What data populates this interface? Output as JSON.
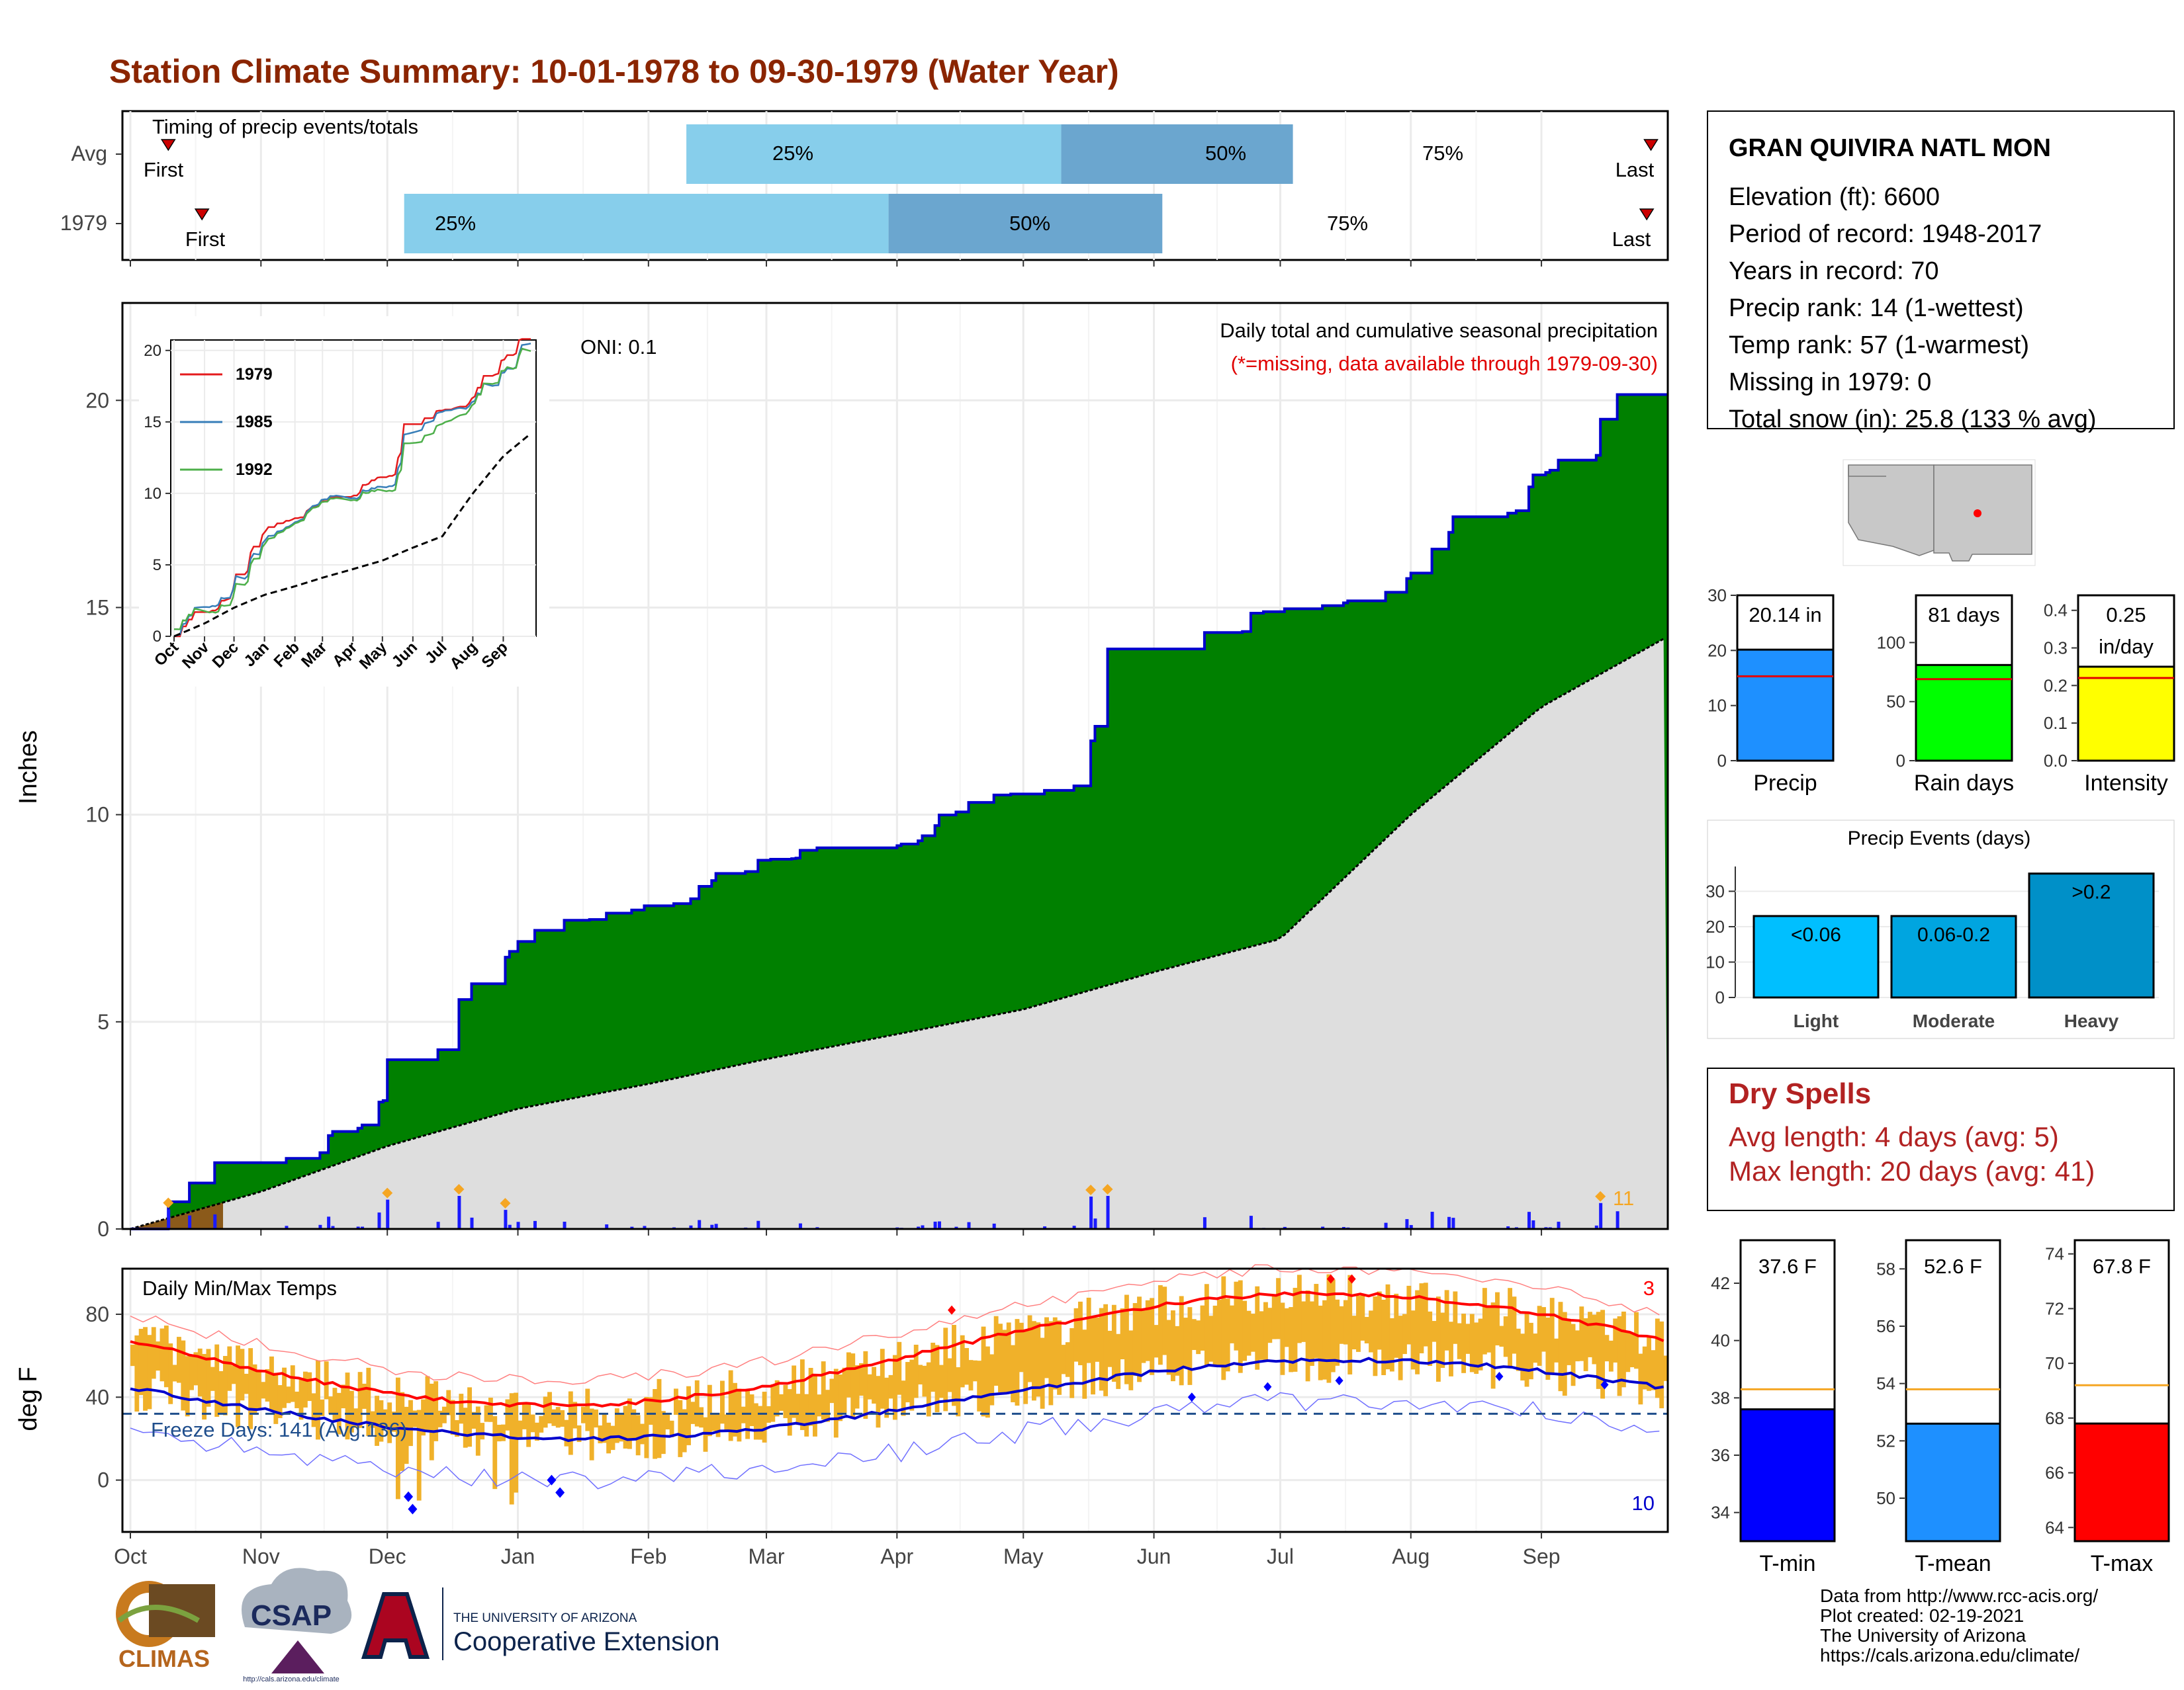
{
  "title": "Station Climate Summary: 10-01-1978 to 09-30-1979 (Water Year)",
  "colors": {
    "title": "#8B2500",
    "precip_fill": "#008000",
    "precip_line": "#0000CD",
    "avg_fill": "#DEDEDE",
    "snow_fill": "#8B5A1A",
    "light_bar": "#87CEEB",
    "dark_bar": "#6BA6CF",
    "temp_bar": "#F0B12A",
    "tmax": "#FF0000",
    "tmin": "#0000CD",
    "dry": "#B22222"
  },
  "timing": {
    "panel_label": "Timing of precip events/totals",
    "rows": [
      {
        "label": "Avg",
        "first_label": "First",
        "last_label": "Last",
        "p25": "25%",
        "p50": "50%",
        "p75": "75%",
        "first_day": 9,
        "last_day": 361,
        "d25": 132,
        "d50": 221,
        "d75": 276
      },
      {
        "label": "1979",
        "first_label": "First",
        "last_label": "Last",
        "p25": "25%",
        "p50": "50%",
        "p75": "75%",
        "first_day": 17,
        "last_day": 360,
        "d25": 65,
        "d50": 180,
        "d75": 245
      }
    ]
  },
  "precip": {
    "ylabel": "Inches",
    "oni": "ONI: 0.1",
    "subtitle": "Daily total and cumulative seasonal precipitation",
    "missing_note": "(*=missing, data available through 1979-09-30)",
    "event_count": "11",
    "yticks": [
      "0",
      "5",
      "10",
      "15",
      "20"
    ]
  },
  "inset": {
    "legend": [
      "1979",
      "1985",
      "1992"
    ],
    "legend_colors": [
      "#E41A1C",
      "#377EB8",
      "#4DAF4A"
    ],
    "yticks": [
      "0",
      "5",
      "10",
      "15",
      "20"
    ],
    "months": [
      "Oct",
      "Nov",
      "Dec",
      "Jan",
      "Feb",
      "Mar",
      "Apr",
      "May",
      "Jun",
      "Jul",
      "Aug",
      "Sep"
    ]
  },
  "temps": {
    "ylabel": "deg F",
    "panel_label": "Daily Min/Max Temps",
    "freeze_label": "Freeze Days: 141 (Avg:136)",
    "record_high_count": "3",
    "record_low_count": "10",
    "yticks": [
      "0",
      "40",
      "80"
    ]
  },
  "months": [
    "Oct",
    "Nov",
    "Dec",
    "Jan",
    "Feb",
    "Mar",
    "Apr",
    "May",
    "Jun",
    "Jul",
    "Aug",
    "Sep"
  ],
  "station": {
    "name": "GRAN QUIVIRA NATL MON",
    "lines": [
      "Elevation (ft): 6600",
      "Period of record: 1948-2017",
      "Years in record: 70",
      "Precip rank: 14 (1-wettest)",
      "Temp rank: 57 (1-warmest)",
      "Missing in 1979: 0",
      "Total snow (in): 25.8 (133 % avg)"
    ]
  },
  "summary_bars": [
    {
      "name": "Precip",
      "value_label": "20.14 in",
      "value": 20.14,
      "avg": 15.3,
      "ymax": 30,
      "ticks": [
        "0",
        "10",
        "20",
        "30"
      ],
      "color": "#1E90FF"
    },
    {
      "name": "Rain days",
      "value_label": "81 days",
      "value": 81,
      "avg": 69,
      "ymax": 140,
      "ticks": [
        "0",
        "50",
        "100"
      ],
      "color": "#00FF00"
    },
    {
      "name": "Intensity",
      "value_label": "0.25",
      "value_label2": "in/day",
      "value": 0.25,
      "avg": 0.22,
      "ymax": 0.44,
      "ticks": [
        "0.0",
        "0.1",
        "0.2",
        "0.3",
        "0.4"
      ],
      "color": "#FFFF00"
    }
  ],
  "events": {
    "title": "Precip Events (days)",
    "bars": [
      {
        "name": "Light",
        "label": "<0.06",
        "value": 23,
        "color": "#00BFFF"
      },
      {
        "name": "Moderate",
        "label": "0.06-0.2",
        "value": 23,
        "color": "#00A5E0"
      },
      {
        "name": "Heavy",
        "label": ">0.2",
        "value": 35,
        "color": "#0090C8"
      }
    ],
    "ticks": [
      "0",
      "10",
      "20",
      "30"
    ]
  },
  "dry_spells": {
    "title": "Dry Spells",
    "avg": "Avg length: 4 days (avg: 5)",
    "max": "Max length: 20 days (avg: 41)"
  },
  "temp_bars": [
    {
      "name": "T-min",
      "value_label": "37.6 F",
      "value": 37.6,
      "avg": 38.3,
      "min": 33,
      "max": 43.5,
      "ticks": [
        "34",
        "36",
        "38",
        "40",
        "42"
      ],
      "tickv": [
        34,
        36,
        38,
        40,
        42
      ],
      "color": "#0000FF"
    },
    {
      "name": "T-mean",
      "value_label": "52.6 F",
      "value": 52.6,
      "avg": 53.8,
      "min": 48.5,
      "max": 59,
      "ticks": [
        "50",
        "52",
        "54",
        "56",
        "58"
      ],
      "tickv": [
        50,
        52,
        54,
        56,
        58
      ],
      "color": "#1E90FF"
    },
    {
      "name": "T-max",
      "value_label": "67.8 F",
      "value": 67.8,
      "avg": 69.2,
      "min": 63.5,
      "max": 74.5,
      "ticks": [
        "64",
        "66",
        "68",
        "70",
        "72",
        "74"
      ],
      "tickv": [
        64,
        66,
        68,
        70,
        72,
        74
      ],
      "color": "#FF0000"
    }
  ],
  "credits": [
    "Data from http://www.rcc-acis.org/",
    "Plot created: 02-19-2021",
    "The University of Arizona",
    "https://cals.arizona.edu/climate/"
  ],
  "logos": {
    "climas": "CLIMAS",
    "csap": "CSAP",
    "csap_url": "http://cals.arizona.edu/climate",
    "ua_small": "THE UNIVERSITY OF ARIZONA",
    "ua_big": "Cooperative Extension"
  },
  "chart_data": {
    "type": "area",
    "title": "Daily total and cumulative seasonal precipitation",
    "ylabel": "Inches",
    "x": [
      "Oct",
      "Nov",
      "Dec",
      "Jan",
      "Feb",
      "Mar",
      "Apr",
      "May",
      "Jun",
      "Jul",
      "Aug",
      "Sep",
      "Sep-30"
    ],
    "series": [
      {
        "name": "1979",
        "values": [
          0.0,
          1.6,
          3.1,
          6.7,
          7.8,
          8.9,
          9.2,
          10.5,
          14.0,
          14.9,
          15.7,
          18.2,
          20.14
        ]
      },
      {
        "values": [
          0.0,
          0.9,
          2.0,
          2.9,
          3.5,
          4.1,
          4.7,
          5.3,
          6.2,
          7.0,
          10.0,
          12.6,
          14.3
        ]
      }
    ],
    "ylim": [
      0,
      22
    ]
  }
}
